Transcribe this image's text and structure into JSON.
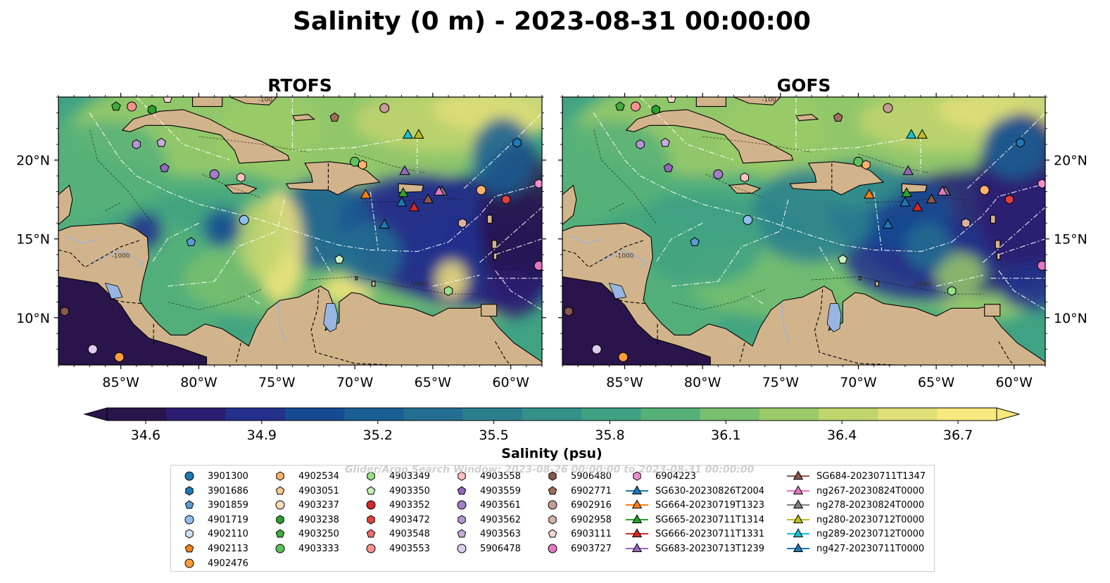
{
  "figure": {
    "title": "Salinity (0 m) - 2023-08-31 00:00:00",
    "watermark": "Glider/Argo Search Window: 2023-08-26 00:00:00 to 2023-08-31 00:00:00"
  },
  "colors": {
    "land": "#d2b48c",
    "lake": "#97b6e1",
    "river": "#a0b4cc",
    "colormap": [
      "#29154b",
      "#2b1e72",
      "#23308c",
      "#164a92",
      "#1a5e93",
      "#236f91",
      "#2c808e",
      "#349189",
      "#3fa283",
      "#56b179",
      "#78bf6e",
      "#9bcb68",
      "#c1d56e",
      "#e1df78",
      "#f8e87d"
    ]
  },
  "chart_data": [
    {
      "type": "heatmap",
      "title": "RTOFS",
      "x_ticks": [
        "85°W",
        "80°W",
        "75°W",
        "70°W",
        "65°W",
        "60°W"
      ],
      "y_ticks": [
        "20°N",
        "15°N",
        "10°N"
      ],
      "xlim": [
        -89,
        -58
      ],
      "ylim": [
        7,
        24
      ],
      "contour_labels": [
        "-100",
        "-1000",
        "-2000"
      ]
    },
    {
      "type": "heatmap",
      "title": "GOFS",
      "x_ticks": [
        "85°W",
        "80°W",
        "75°W",
        "70°W",
        "65°W",
        "60°W"
      ],
      "y_ticks": [
        "20°N",
        "15°N",
        "10°N"
      ],
      "xlim": [
        -89,
        -58
      ],
      "ylim": [
        7,
        24
      ],
      "contour_labels": [
        "-100",
        "-1000",
        "-2000"
      ]
    }
  ],
  "colorbar": {
    "label": "Salinity (psu)",
    "ticks": [
      "34.6",
      "34.9",
      "35.2",
      "35.5",
      "35.8",
      "36.1",
      "36.4",
      "36.7"
    ],
    "range": [
      34.5,
      36.8
    ],
    "extend": "both"
  },
  "legend": {
    "columns": [
      [
        {
          "label": "3901300",
          "marker": "circle",
          "color": "#1f77b4"
        },
        {
          "label": "3901686",
          "marker": "hexagon",
          "color": "#1f77b4"
        },
        {
          "label": "3901859",
          "marker": "pentagon",
          "color": "#5a9bd4"
        },
        {
          "label": "4901719",
          "marker": "circle",
          "color": "#8fbfe8"
        },
        {
          "label": "4902110",
          "marker": "hexagon",
          "color": "#cfe3f7"
        },
        {
          "label": "4902113",
          "marker": "pentagon",
          "color": "#ff7f0e"
        },
        {
          "label": "4902476",
          "marker": "circle",
          "color": "#ff9d3a"
        }
      ],
      [
        {
          "label": "4902534",
          "marker": "hexagon",
          "color": "#ffb26b"
        },
        {
          "label": "4903051",
          "marker": "pentagon",
          "color": "#ffc894"
        },
        {
          "label": "4903237",
          "marker": "circle",
          "color": "#ffdcb8"
        },
        {
          "label": "4903238",
          "marker": "hexagon",
          "color": "#2ca02c"
        },
        {
          "label": "4903250",
          "marker": "pentagon",
          "color": "#3fae3f"
        },
        {
          "label": "4903333",
          "marker": "circle",
          "color": "#5cc05c"
        }
      ],
      [
        {
          "label": "4903349",
          "marker": "hexagon",
          "color": "#98df8a"
        },
        {
          "label": "4903350",
          "marker": "pentagon",
          "color": "#c7f0bd"
        },
        {
          "label": "4903352",
          "marker": "circle",
          "color": "#d62728"
        },
        {
          "label": "4903472",
          "marker": "hexagon",
          "color": "#e0413f"
        },
        {
          "label": "4903548",
          "marker": "pentagon",
          "color": "#ec6e6b"
        },
        {
          "label": "4903553",
          "marker": "circle",
          "color": "#f5928f"
        }
      ],
      [
        {
          "label": "4903558",
          "marker": "hexagon",
          "color": "#ffc1c0"
        },
        {
          "label": "4903559",
          "marker": "pentagon",
          "color": "#9467bd"
        },
        {
          "label": "4903561",
          "marker": "circle",
          "color": "#a47cc9"
        },
        {
          "label": "4903562",
          "marker": "hexagon",
          "color": "#b594d6"
        },
        {
          "label": "4903563",
          "marker": "pentagon",
          "color": "#c6acdf"
        },
        {
          "label": "5906478",
          "marker": "circle",
          "color": "#ddccee"
        }
      ],
      [
        {
          "label": "5906480",
          "marker": "hexagon",
          "color": "#8c564b"
        },
        {
          "label": "6902771",
          "marker": "pentagon",
          "color": "#a26c5d"
        },
        {
          "label": "6902916",
          "marker": "circle",
          "color": "#c49c94"
        },
        {
          "label": "6902958",
          "marker": "hexagon",
          "color": "#dbb1a6"
        },
        {
          "label": "6903111",
          "marker": "pentagon",
          "color": "#f3d6ce"
        },
        {
          "label": "6903727",
          "marker": "circle",
          "color": "#e377c2"
        }
      ],
      [
        {
          "label": "6904223",
          "marker": "hexagon",
          "color": "#f08ecf"
        },
        {
          "label": "SG630-20230826T2004",
          "marker": "triangle-line",
          "color": "#1f77b4"
        },
        {
          "label": "SG664-20230719T1323",
          "marker": "triangle-line",
          "color": "#ff7f0e"
        },
        {
          "label": "SG665-20230711T1314",
          "marker": "triangle-line",
          "color": "#2ca02c"
        },
        {
          "label": "SG666-20230711T1331",
          "marker": "triangle-line",
          "color": "#d62728"
        },
        {
          "label": "SG683-20230713T1239",
          "marker": "triangle-line",
          "color": "#9467bd"
        }
      ],
      [
        {
          "label": "SG684-20230711T1347",
          "marker": "triangle-line",
          "color": "#8c564b"
        },
        {
          "label": "ng267-20230824T0000",
          "marker": "triangle-line",
          "color": "#e377c2"
        },
        {
          "label": "ng278-20230824T0000",
          "marker": "triangle-line",
          "color": "#7f7f7f"
        },
        {
          "label": "ng280-20230712T0000",
          "marker": "triangle-line",
          "color": "#bcbd22"
        },
        {
          "label": "ng289-20230712T0000",
          "marker": "triangle-line",
          "color": "#17becf"
        },
        {
          "label": "ng427-20230711T0000",
          "marker": "triangle-line",
          "color": "#1f77b4"
        }
      ]
    ]
  },
  "platforms": [
    {
      "id": "4903250",
      "marker": "pentagon",
      "color": "#3fae3f",
      "lon": -85.3,
      "lat": 23.4
    },
    {
      "id": "4903553",
      "marker": "circle",
      "color": "#f5928f",
      "lon": -84.3,
      "lat": 23.4
    },
    {
      "id": "4903238",
      "marker": "hexagon",
      "color": "#2ca02c",
      "lon": -83.0,
      "lat": 23.2
    },
    {
      "id": "6903111",
      "marker": "pentagon",
      "color": "#f3d6ce",
      "lon": -82.0,
      "lat": 23.9
    },
    {
      "id": "6902771",
      "marker": "pentagon",
      "color": "#a26c5d",
      "lon": -71.3,
      "lat": 22.7
    },
    {
      "id": "6902916",
      "marker": "circle",
      "color": "#c49c94",
      "lon": -68.1,
      "lat": 23.3
    },
    {
      "id": "4903562",
      "marker": "hexagon",
      "color": "#b594d6",
      "lon": -84.0,
      "lat": 21.0
    },
    {
      "id": "4903563",
      "marker": "pentagon",
      "color": "#c6acdf",
      "lon": -82.4,
      "lat": 21.1
    },
    {
      "id": "4903559",
      "marker": "pentagon",
      "color": "#9467bd",
      "lon": -82.2,
      "lat": 19.5
    },
    {
      "id": "4903561",
      "marker": "circle",
      "color": "#a47cc9",
      "lon": -79.0,
      "lat": 19.1
    },
    {
      "id": "4903558",
      "marker": "hexagon",
      "color": "#ffc1c0",
      "lon": -77.3,
      "lat": 18.9
    },
    {
      "id": "4903333",
      "marker": "circle",
      "color": "#5cc05c",
      "lon": -70.0,
      "lat": 19.9
    },
    {
      "id": "4902534",
      "marker": "hexagon",
      "color": "#ffb26b",
      "lon": -69.5,
      "lat": 19.7
    },
    {
      "id": "3901686",
      "marker": "hexagon",
      "color": "#1f77b4",
      "lon": -59.6,
      "lat": 21.1
    },
    {
      "id": "4903472",
      "marker": "hexagon",
      "color": "#e0413f",
      "lon": -60.3,
      "lat": 17.5
    },
    {
      "id": "4902534b",
      "marker": "circle",
      "color": "#ffb26b",
      "lon": -61.9,
      "lat": 18.1
    },
    {
      "id": "6904223",
      "marker": "hexagon",
      "color": "#f08ecf",
      "lon": -58.2,
      "lat": 18.5
    },
    {
      "id": "4901719",
      "marker": "circle",
      "color": "#8fbfe8",
      "lon": -77.1,
      "lat": 16.2
    },
    {
      "id": "6902958",
      "marker": "hexagon",
      "color": "#dbb1a6",
      "lon": -63.1,
      "lat": 16.0
    },
    {
      "id": "3901859",
      "marker": "pentagon",
      "color": "#5a9bd4",
      "lon": -80.5,
      "lat": 14.8
    },
    {
      "id": "4903350",
      "marker": "pentagon",
      "color": "#c7f0bd",
      "lon": -71.0,
      "lat": 13.7
    },
    {
      "id": "4903349",
      "marker": "hexagon",
      "color": "#98df8a",
      "lon": -64.0,
      "lat": 11.7
    },
    {
      "id": "6903727",
      "marker": "circle",
      "color": "#e377c2",
      "lon": -58.2,
      "lat": 13.3
    },
    {
      "id": "5906480",
      "marker": "hexagon",
      "color": "#8c564b",
      "lon": -88.6,
      "lat": 10.4
    },
    {
      "id": "5906478",
      "marker": "circle",
      "color": "#ddccee",
      "lon": -86.8,
      "lat": 8.0
    },
    {
      "id": "4902476",
      "marker": "circle",
      "color": "#ff9d3a",
      "lon": -85.1,
      "lat": 7.5
    },
    {
      "id": "ng280",
      "marker": "triangle",
      "color": "#bcbd22",
      "lon": -65.9,
      "lat": 21.6
    },
    {
      "id": "ng289",
      "marker": "triangle",
      "color": "#17becf",
      "lon": -66.6,
      "lat": 21.6
    },
    {
      "id": "SG683",
      "marker": "triangle",
      "color": "#9467bd",
      "lon": -66.8,
      "lat": 19.3
    },
    {
      "id": "SG664",
      "marker": "triangle",
      "color": "#ff7f0e",
      "lon": -69.3,
      "lat": 17.8
    },
    {
      "id": "SG665",
      "marker": "triangle",
      "color": "#2ca02c",
      "lon": -66.9,
      "lat": 17.9
    },
    {
      "id": "ng427",
      "marker": "triangle",
      "color": "#1f77b4",
      "lon": -67.0,
      "lat": 17.3
    },
    {
      "id": "SG666",
      "marker": "triangle",
      "color": "#d62728",
      "lon": -66.2,
      "lat": 17.0
    },
    {
      "id": "SG684",
      "marker": "triangle",
      "color": "#8c564b",
      "lon": -65.3,
      "lat": 17.5
    },
    {
      "id": "ng278",
      "marker": "triangle",
      "color": "#7f7f7f",
      "lon": -64.4,
      "lat": 18.0
    },
    {
      "id": "ng267",
      "marker": "triangle",
      "color": "#e377c2",
      "lon": -64.6,
      "lat": 18.0
    },
    {
      "id": "SG630",
      "marker": "triangle",
      "color": "#1f77b4",
      "lon": -68.1,
      "lat": 15.9
    }
  ]
}
